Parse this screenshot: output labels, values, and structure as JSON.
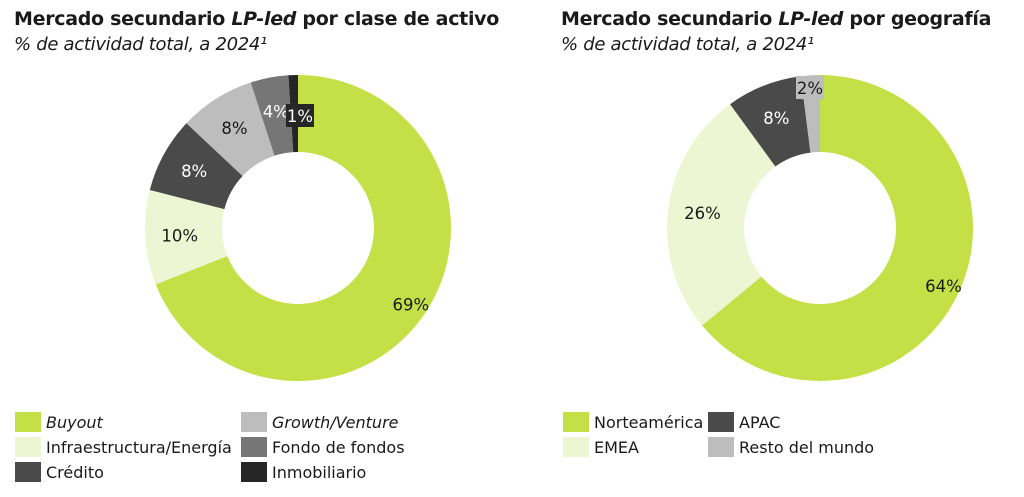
{
  "chart_data": [
    {
      "type": "pie",
      "donut": true,
      "title_pre": "Mercado secundario ",
      "title_em": "LP-led",
      "title_post": " por clase de activo",
      "subtitle": "% de actividad total, a 2024¹",
      "categories": [
        "Buyout",
        "Infraestructura/Energía",
        "Crédito",
        "Growth/Venture",
        "Fondo de fondos",
        "Inmobiliario"
      ],
      "values": [
        69,
        10,
        8,
        8,
        4,
        1
      ],
      "labels": [
        "69%",
        "10%",
        "8%",
        "8%",
        "4%",
        "1%"
      ],
      "colors": [
        "#c5e046",
        "#eef5d3",
        "#4a4a4a",
        "#bdbdbd",
        "#767676",
        "#262626"
      ],
      "italic": [
        true,
        false,
        false,
        true,
        false,
        false
      ],
      "legend_placement": "bottom"
    },
    {
      "type": "pie",
      "donut": true,
      "title_pre": "Mercado secundario ",
      "title_em": "LP-led",
      "title_post": " por geografía",
      "subtitle": "% de actividad total, a 2024¹",
      "categories": [
        "Norteamérica",
        "EMEA",
        "APAC",
        "Resto del mundo"
      ],
      "values": [
        64,
        26,
        8,
        2
      ],
      "labels": [
        "64%",
        "26%",
        "8%",
        "2%"
      ],
      "colors": [
        "#c5e046",
        "#eef5d3",
        "#4a4a4a",
        "#bdbdbd"
      ],
      "italic": [
        false,
        false,
        false,
        false
      ],
      "legend_placement": "bottom"
    }
  ]
}
